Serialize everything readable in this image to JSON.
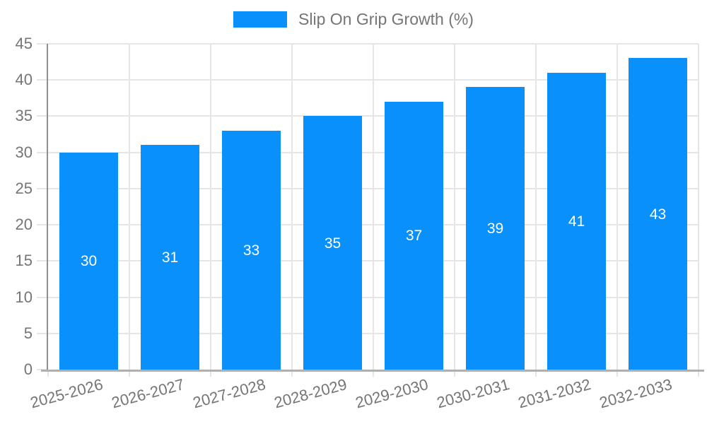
{
  "legend": {
    "label": "Slip On Grip Growth (%)"
  },
  "colors": {
    "bar": "#0a90fa",
    "grid": "#e5e5e5",
    "axis_y": "#8f8f8f",
    "axis_x": "#b0b0b0",
    "tick_label": "#757575",
    "legend_text": "#757575",
    "data_label": "#ffffff",
    "background": "#ffffff"
  },
  "chart_data": {
    "type": "bar",
    "title": "",
    "categories": [
      "2025-2026",
      "2026-2027",
      "2027-2028",
      "2028-2029",
      "2029-2030",
      "2030-2031",
      "2031-2032",
      "2032-2033"
    ],
    "series": [
      {
        "name": "Slip On Grip Growth (%)",
        "values": [
          30,
          31,
          33,
          35,
          37,
          39,
          41,
          43
        ]
      }
    ],
    "xlabel": "",
    "ylabel": "",
    "ylim": [
      0,
      45
    ],
    "yticks": [
      0,
      5,
      10,
      15,
      20,
      25,
      30,
      35,
      40,
      45
    ],
    "grid": true,
    "legend_position": "top",
    "data_labels": "inside-center",
    "x_label_rotation": -15
  }
}
